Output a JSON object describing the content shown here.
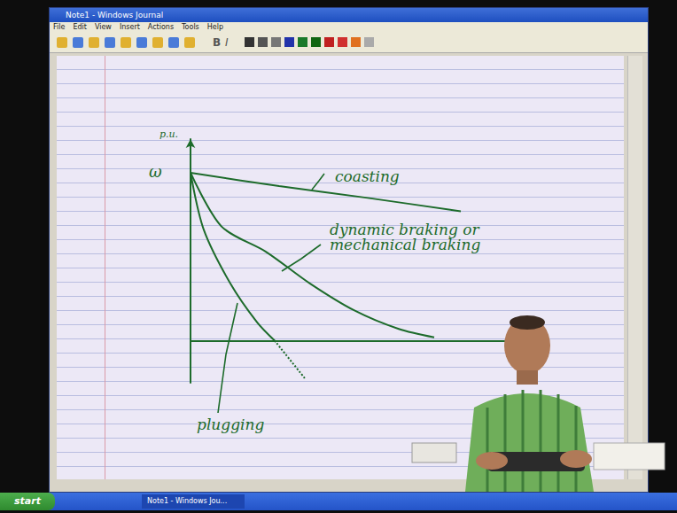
{
  "window": {
    "title": "Note1 - Windows Journal",
    "menu": [
      "File",
      "Edit",
      "View",
      "Insert",
      "Actions",
      "Tools",
      "Help"
    ],
    "toolbar": [
      "B",
      "I"
    ]
  },
  "taskbar": {
    "start": "start",
    "items": [
      "Note1 - Windows Jou..."
    ]
  },
  "chart_data": {
    "type": "line",
    "y_label": "p.u.",
    "y_mark": "ω",
    "xlim": [
      0,
      3.85
    ],
    "ylim": [
      -0.25,
      1.2
    ],
    "tick_labels": false,
    "grid": false,
    "series": [
      {
        "name": "coasting",
        "color": "#1d6b2b",
        "line_style": "solid",
        "marker": "none",
        "x": [
          0,
          1,
          2,
          3.05
        ],
        "values": [
          1,
          0.92,
          0.85,
          0.77
        ]
      },
      {
        "name": "dynamic braking or mechanical braking",
        "color": "#1d6b2b",
        "line_style": "solid",
        "marker": "none",
        "x": [
          0,
          0.35,
          0.85,
          1.35,
          1.85,
          2.35,
          2.75
        ],
        "values": [
          1,
          0.68,
          0.53,
          0.34,
          0.18,
          0.07,
          0.02
        ]
      },
      {
        "name": "plugging",
        "color": "#1d6b2b",
        "line_style": "solid",
        "marker": "none",
        "x": [
          0,
          0.15,
          0.45,
          0.75,
          0.95
        ],
        "values": [
          1,
          0.66,
          0.34,
          0.11,
          0
        ]
      },
      {
        "color": "#1d6b2b",
        "line_style": "dotted",
        "marker": "none",
        "x": [
          0.95,
          1.3
        ],
        "values": [
          0,
          -0.23
        ]
      }
    ]
  }
}
